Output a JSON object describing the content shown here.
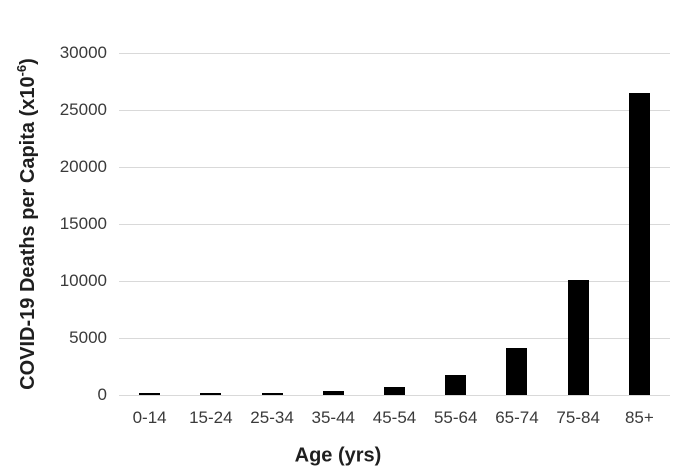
{
  "chart_data": {
    "type": "bar",
    "xlabel": "Age (yrs)",
    "ylabel_main": "COVID-19 Deaths per Capita (x10",
    "ylabel_sup": "-6",
    "ylabel_end": ")",
    "categories": [
      "0-14",
      "15-24",
      "25-34",
      "35-44",
      "45-54",
      "55-64",
      "65-74",
      "75-84",
      "85+"
    ],
    "values": [
      50,
      100,
      175,
      350,
      700,
      1750,
      4150,
      10100,
      26500
    ],
    "ylim": [
      0,
      30000
    ],
    "ytick_step": 5000,
    "ytick_labels": [
      "0",
      "5000",
      "10000",
      "15000",
      "20000",
      "25000",
      "30000"
    ],
    "grid": true,
    "legend": false,
    "bar_color": "#000000",
    "gridline_color": "#d9d9d9",
    "axis_text_color": "#3a3a3a",
    "title_text_color": "#1f1f1f",
    "background_color": "#ffffff"
  }
}
